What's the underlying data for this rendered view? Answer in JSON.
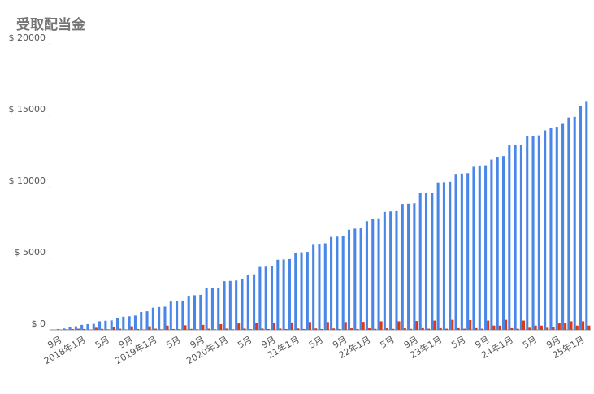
{
  "chart_data": {
    "type": "bar",
    "title": "受取配当金",
    "categories": [
      null,
      "9月",
      null,
      null,
      null,
      "2018年1月",
      null,
      null,
      null,
      "5月",
      null,
      null,
      null,
      "9月",
      null,
      null,
      null,
      "2019年1月",
      null,
      null,
      null,
      "5月",
      null,
      null,
      null,
      "9月",
      null,
      null,
      null,
      "2020年1月",
      null,
      null,
      null,
      "5月",
      null,
      null,
      null,
      "9月",
      null,
      null,
      null,
      "21年1月",
      null,
      null,
      null,
      "5月",
      null,
      null,
      null,
      "9月",
      null,
      null,
      null,
      "22年1月",
      null,
      null,
      null,
      "5月",
      null,
      null,
      null,
      "9月",
      null,
      null,
      null,
      "23年1月",
      null,
      null,
      null,
      "5月",
      null,
      null,
      null,
      "9月",
      null,
      null,
      null,
      "24年1月",
      null,
      null,
      null,
      "5月",
      null,
      null,
      null,
      "9月",
      null,
      null,
      null,
      "25年1月",
      null
    ],
    "series": [
      {
        "color": "#4a86e8",
        "values": [
          20,
          60,
          100,
          180,
          250,
          350,
          400,
          420,
          600,
          640,
          660,
          800,
          920,
          950,
          1000,
          1250,
          1300,
          1550,
          1600,
          1620,
          1980,
          2000,
          2050,
          2380,
          2420,
          2450,
          2900,
          2920,
          2950,
          3400,
          3420,
          3450,
          3550,
          3850,
          3880,
          4400,
          4420,
          4450,
          4900,
          4920,
          4950,
          5400,
          5420,
          5450,
          6000,
          6020,
          6050,
          6500,
          6520,
          6550,
          7000,
          7080,
          7100,
          7600,
          7750,
          7800,
          8250,
          8280,
          8300,
          8800,
          8820,
          8850,
          9550,
          9580,
          9600,
          10300,
          10320,
          10350,
          10900,
          10920,
          10950,
          11450,
          11480,
          11500,
          11900,
          12100,
          12150,
          12900,
          12920,
          12950,
          13550,
          13580,
          13600,
          13950,
          14150,
          14200,
          14400,
          14850,
          14900,
          15650,
          16000
        ]
      },
      {
        "color": "#dc3912",
        "values": [
          10,
          20,
          40,
          60,
          80,
          60,
          30,
          150,
          70,
          40,
          200,
          80,
          30,
          250,
          60,
          30,
          250,
          80,
          40,
          300,
          60,
          50,
          320,
          70,
          40,
          350,
          80,
          40,
          400,
          90,
          40,
          450,
          90,
          50,
          500,
          90,
          60,
          500,
          90,
          60,
          520,
          100,
          60,
          550,
          100,
          60,
          550,
          100,
          60,
          550,
          110,
          60,
          560,
          110,
          70,
          600,
          110,
          70,
          600,
          110,
          70,
          620,
          120,
          80,
          650,
          120,
          80,
          700,
          120,
          80,
          680,
          120,
          80,
          650,
          300,
          300,
          700,
          120,
          80,
          650,
          150,
          300,
          300,
          150,
          200,
          450,
          500,
          600,
          300,
          600,
          300
        ]
      }
    ],
    "ylim": [
      0,
      20000
    ],
    "yticks": [
      {
        "value": 0,
        "label": "$ 0"
      },
      {
        "value": 5000,
        "label": "$ 5000"
      },
      {
        "value": 10000,
        "label": "$ 10000"
      },
      {
        "value": 15000,
        "label": "$ 15000"
      },
      {
        "value": 20000,
        "label": "$ 20000"
      }
    ]
  }
}
